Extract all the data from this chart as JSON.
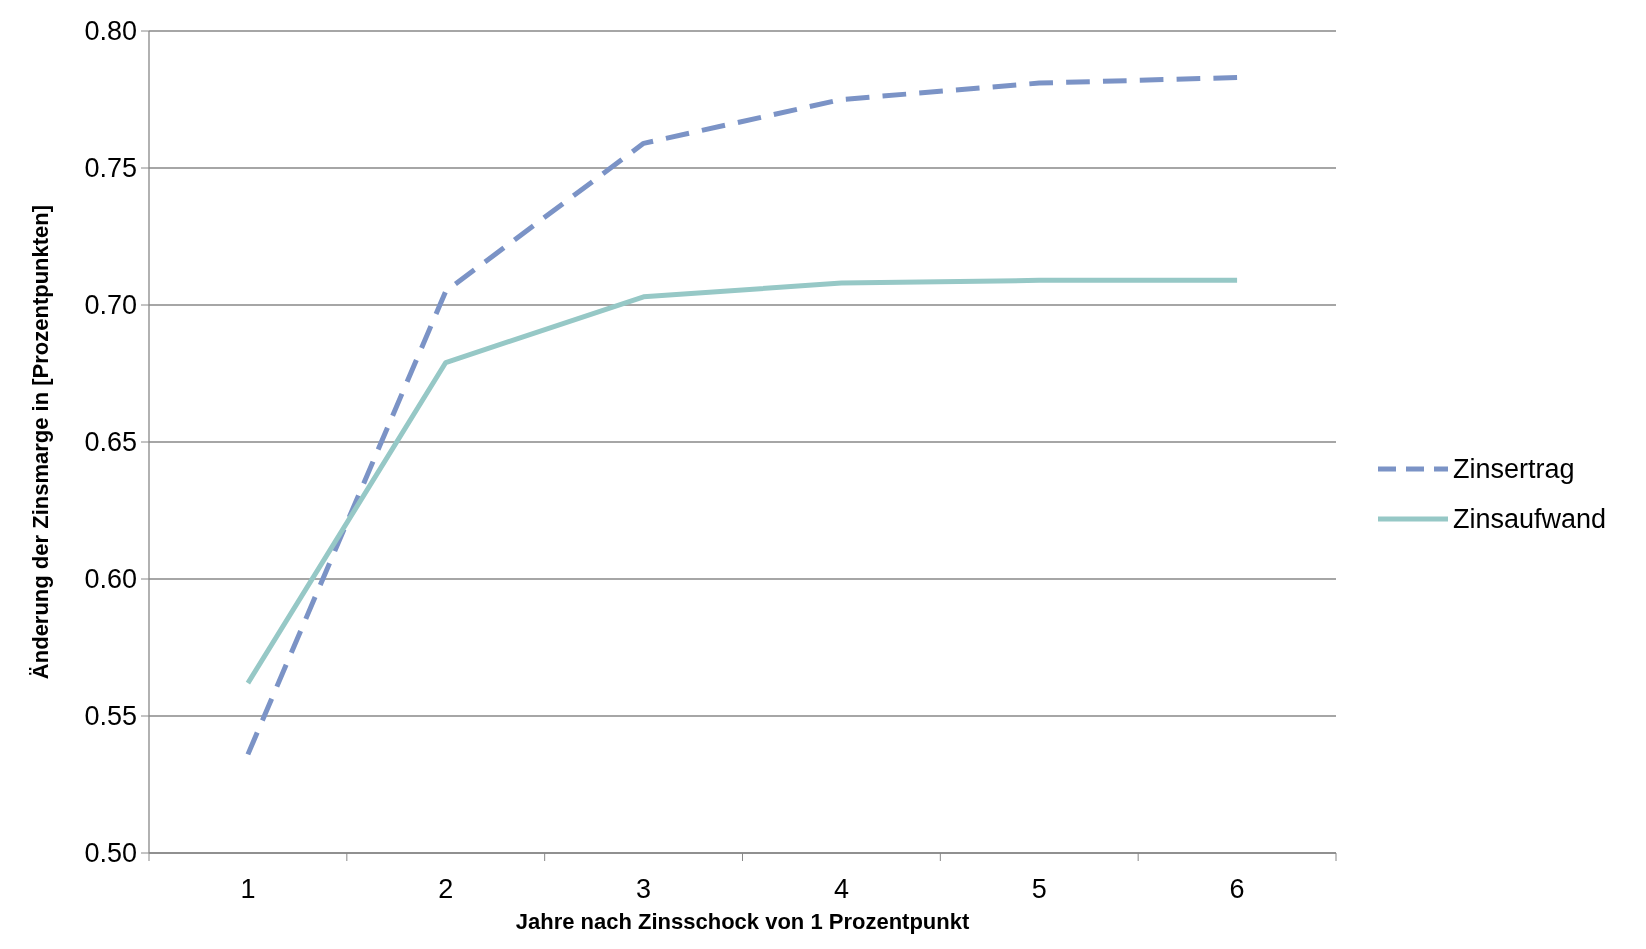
{
  "chart_data": {
    "type": "line",
    "xlabel": "Jahre nach Zinsschock von 1 Prozentpunkt",
    "ylabel": "Änderung der Zinsmarge in [Prozentpunkten]",
    "categories": [
      "1",
      "2",
      "3",
      "4",
      "5",
      "6"
    ],
    "series": [
      {
        "name": "Zinsertrag",
        "color": "#7b93c6",
        "line_style": "dashed",
        "values": [
          0.536,
          0.705,
          0.759,
          0.775,
          0.781,
          0.783
        ]
      },
      {
        "name": "Zinsaufwand",
        "color": "#96c8c6",
        "line_style": "solid",
        "values": [
          0.562,
          0.679,
          0.703,
          0.708,
          0.709,
          0.709
        ]
      }
    ],
    "ylim": [
      0.5,
      0.8
    ],
    "yticks": [
      {
        "value": 0.5,
        "label": "0.50"
      },
      {
        "value": 0.55,
        "label": "0.55"
      },
      {
        "value": 0.6,
        "label": "0.60"
      },
      {
        "value": 0.65,
        "label": "0.65"
      },
      {
        "value": 0.7,
        "label": "0.70"
      },
      {
        "value": 0.75,
        "label": "0.75"
      },
      {
        "value": 0.8,
        "label": "0.80"
      }
    ],
    "grid": "y",
    "legend": "right",
    "marker": "none"
  }
}
